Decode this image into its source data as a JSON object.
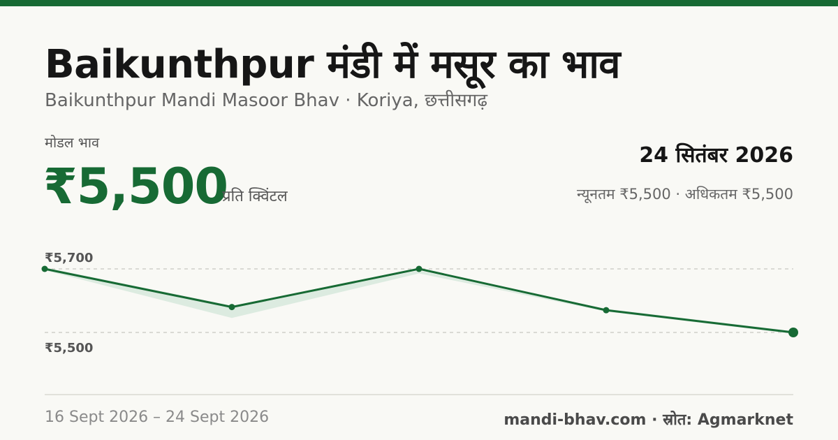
{
  "header": {
    "title": "Baikunthpur मंडी में मसूर का भाव",
    "subtitle": "Baikunthpur Mandi Masoor Bhav · Koriya, छत्तीसगढ़"
  },
  "price": {
    "label": "मोडल भाव",
    "value": "₹5,500",
    "unit": "प्रति क्विंटल"
  },
  "date": "24 सितंबर 2026",
  "range_text": "न्यूनतम ₹5,500 · अधिकतम ₹5,500",
  "footer": {
    "period": "16 Sept 2026 – 24 Sept 2026",
    "source": "mandi-bhav.com · स्रोत: Agmarknet"
  },
  "colors": {
    "accent": "#176a34",
    "band": "#dcebe0",
    "grid": "#c8c8c0"
  },
  "chart_data": {
    "type": "line",
    "ylim": [
      5500,
      5700
    ],
    "y_tick_labels": [
      "₹5,700",
      "₹5,500"
    ],
    "y_ticks": [
      5700,
      5500
    ],
    "grid": true,
    "series": [
      {
        "values": [
          5700,
          5580,
          5700,
          5570,
          5500
        ]
      }
    ],
    "band": {
      "upper": [
        5700,
        5580,
        5690,
        5570,
        5500
      ],
      "lower": [
        5700,
        5550,
        5690,
        5570,
        5500
      ]
    }
  }
}
